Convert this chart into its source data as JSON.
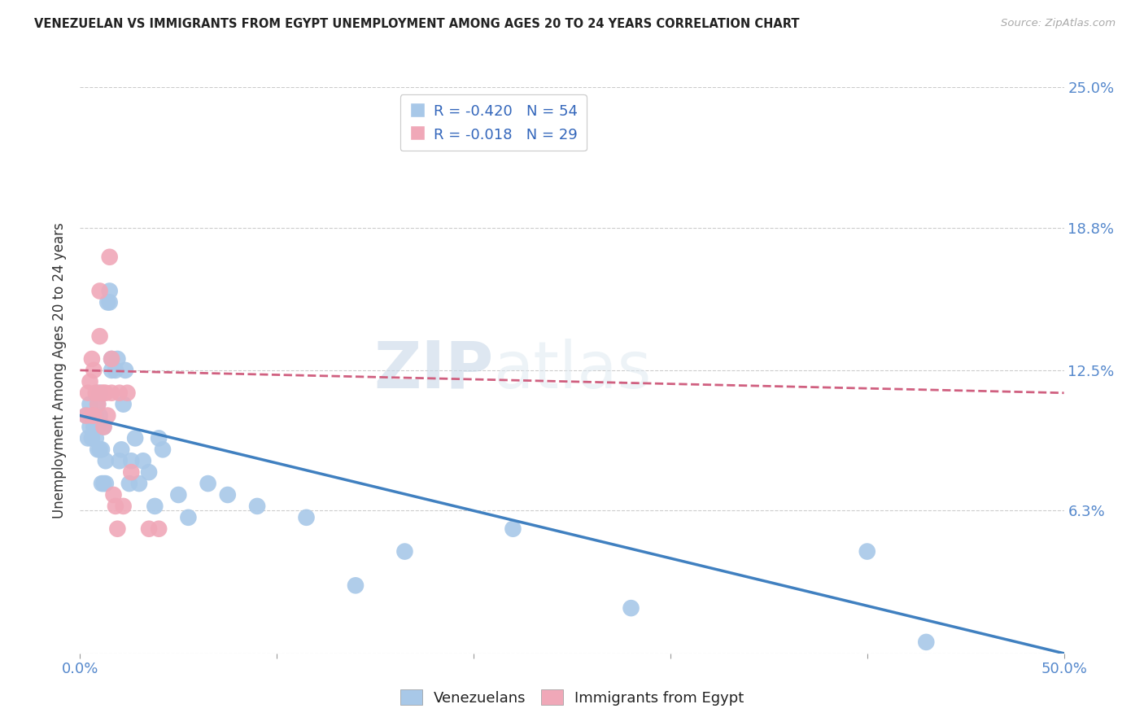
{
  "title": "VENEZUELAN VS IMMIGRANTS FROM EGYPT UNEMPLOYMENT AMONG AGES 20 TO 24 YEARS CORRELATION CHART",
  "source": "Source: ZipAtlas.com",
  "ylabel": "Unemployment Among Ages 20 to 24 years",
  "xlim": [
    0.0,
    0.5
  ],
  "ylim": [
    0.0,
    0.25
  ],
  "yticks": [
    0.0,
    0.063,
    0.125,
    0.188,
    0.25
  ],
  "ytick_labels": [
    "",
    "6.3%",
    "12.5%",
    "18.8%",
    "25.0%"
  ],
  "xticks": [
    0.0,
    0.1,
    0.2,
    0.3,
    0.4,
    0.5
  ],
  "xtick_labels": [
    "0.0%",
    "",
    "",
    "",
    "",
    "50.0%"
  ],
  "grid_color": "#cccccc",
  "background_color": "#ffffff",
  "watermark1": "ZIP",
  "watermark2": "atlas",
  "legend_label1": "R = -0.420   N = 54",
  "legend_label2": "R = -0.018   N = 29",
  "venezuelan_color": "#a8c8e8",
  "egypt_color": "#f0a8b8",
  "line_blue": "#4080c0",
  "line_pink": "#d06080",
  "tick_color": "#5588cc",
  "label_color": "#333333",
  "venezuelan_x": [
    0.003,
    0.004,
    0.005,
    0.005,
    0.006,
    0.006,
    0.007,
    0.007,
    0.008,
    0.008,
    0.009,
    0.009,
    0.009,
    0.01,
    0.01,
    0.01,
    0.011,
    0.011,
    0.012,
    0.012,
    0.013,
    0.013,
    0.014,
    0.015,
    0.015,
    0.016,
    0.016,
    0.018,
    0.019,
    0.02,
    0.021,
    0.022,
    0.023,
    0.025,
    0.026,
    0.028,
    0.03,
    0.032,
    0.035,
    0.038,
    0.04,
    0.042,
    0.05,
    0.055,
    0.065,
    0.075,
    0.09,
    0.115,
    0.14,
    0.165,
    0.22,
    0.28,
    0.4,
    0.43
  ],
  "venezuelan_y": [
    0.105,
    0.095,
    0.11,
    0.1,
    0.105,
    0.095,
    0.105,
    0.1,
    0.095,
    0.105,
    0.09,
    0.1,
    0.11,
    0.09,
    0.105,
    0.115,
    0.075,
    0.09,
    0.075,
    0.1,
    0.075,
    0.085,
    0.155,
    0.16,
    0.155,
    0.13,
    0.125,
    0.125,
    0.13,
    0.085,
    0.09,
    0.11,
    0.125,
    0.075,
    0.085,
    0.095,
    0.075,
    0.085,
    0.08,
    0.065,
    0.095,
    0.09,
    0.07,
    0.06,
    0.075,
    0.07,
    0.065,
    0.06,
    0.03,
    0.045,
    0.055,
    0.02,
    0.045,
    0.005
  ],
  "egypt_x": [
    0.003,
    0.004,
    0.005,
    0.006,
    0.006,
    0.007,
    0.007,
    0.008,
    0.009,
    0.009,
    0.01,
    0.01,
    0.011,
    0.012,
    0.012,
    0.013,
    0.014,
    0.015,
    0.016,
    0.016,
    0.017,
    0.018,
    0.019,
    0.02,
    0.022,
    0.024,
    0.026,
    0.035,
    0.04
  ],
  "egypt_y": [
    0.105,
    0.115,
    0.12,
    0.13,
    0.105,
    0.125,
    0.105,
    0.115,
    0.115,
    0.11,
    0.14,
    0.16,
    0.115,
    0.115,
    0.1,
    0.115,
    0.105,
    0.175,
    0.115,
    0.13,
    0.07,
    0.065,
    0.055,
    0.115,
    0.065,
    0.115,
    0.08,
    0.055,
    0.055
  ],
  "blue_line_x0": 0.0,
  "blue_line_y0": 0.105,
  "blue_line_x1": 0.5,
  "blue_line_y1": 0.0,
  "pink_line_x0": 0.0,
  "pink_line_y0": 0.125,
  "pink_line_x1": 0.5,
  "pink_line_y1": 0.115
}
